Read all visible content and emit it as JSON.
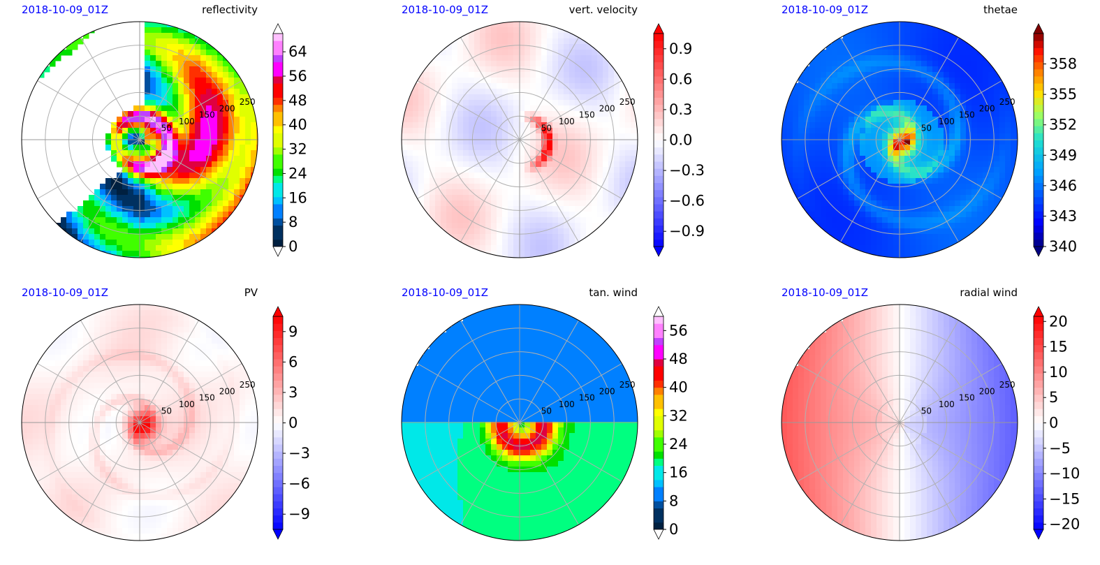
{
  "figure": {
    "panels": [
      {
        "id": "reflectivity",
        "date": "2018-10-09_01Z",
        "title": "reflectivity",
        "colormap": "radar",
        "colorbar": {
          "min": 0,
          "max": 70,
          "ticks": [
            "0",
            "8",
            "16",
            "24",
            "32",
            "40",
            "48",
            "56",
            "64"
          ],
          "tick_values": [
            0,
            8,
            16,
            24,
            32,
            40,
            48,
            56,
            64
          ],
          "extend_low": "white",
          "extend_high": "white"
        },
        "rings": [
          "50",
          "100",
          "150",
          "200",
          "250"
        ]
      },
      {
        "id": "vert-velocity",
        "date": "2018-10-09_01Z",
        "title": "vert. velocity",
        "colormap": "bwr",
        "colorbar": {
          "min": -1.05,
          "max": 1.05,
          "ticks": [
            "−0.9",
            "−0.6",
            "−0.3",
            "0.0",
            "0.3",
            "0.6",
            "0.9"
          ],
          "tick_values": [
            -0.9,
            -0.6,
            -0.3,
            0.0,
            0.3,
            0.6,
            0.9
          ],
          "extend_low": "#0000ff",
          "extend_high": "#ff0000"
        },
        "rings": [
          "50",
          "100",
          "150",
          "200",
          "250"
        ]
      },
      {
        "id": "thetae",
        "date": "2018-10-09_01Z",
        "title": "thetae",
        "colormap": "jet",
        "colorbar": {
          "min": 340,
          "max": 361,
          "ticks": [
            "340",
            "343",
            "346",
            "349",
            "352",
            "355",
            "358"
          ],
          "tick_values": [
            340,
            343,
            346,
            349,
            352,
            355,
            358
          ],
          "extend_low": "#000080",
          "extend_high": "#800000"
        },
        "rings": [
          "50",
          "100",
          "150",
          "200",
          "250"
        ]
      },
      {
        "id": "pv",
        "date": "2018-10-09_01Z",
        "title": "PV",
        "colormap": "bwr",
        "colorbar": {
          "min": -10.5,
          "max": 10.5,
          "ticks": [
            "−9",
            "−6",
            "−3",
            "0",
            "3",
            "6",
            "9"
          ],
          "tick_values": [
            -9,
            -6,
            -3,
            0,
            3,
            6,
            9
          ],
          "extend_low": "#0000ff",
          "extend_high": "#ff0000"
        },
        "rings": [
          "50",
          "100",
          "150",
          "200",
          "250"
        ]
      },
      {
        "id": "tan-wind",
        "date": "2018-10-09_01Z",
        "title": "tan. wind",
        "colormap": "radar",
        "colorbar": {
          "min": 0,
          "max": 60,
          "ticks": [
            "0",
            "8",
            "16",
            "24",
            "32",
            "40",
            "48",
            "56"
          ],
          "tick_values": [
            0,
            8,
            16,
            24,
            32,
            40,
            48,
            56
          ],
          "extend_low": "white",
          "extend_high": "white"
        },
        "rings": [
          "50",
          "100",
          "150",
          "200",
          "250"
        ]
      },
      {
        "id": "radial-wind",
        "date": "2018-10-09_01Z",
        "title": "radial wind",
        "colormap": "bwr",
        "colorbar": {
          "min": -21,
          "max": 21,
          "ticks": [
            "−20",
            "−15",
            "−10",
            "−5",
            "0",
            "5",
            "10",
            "15",
            "20"
          ],
          "tick_values": [
            -20,
            -15,
            -10,
            -5,
            0,
            5,
            10,
            15,
            20
          ],
          "extend_low": "#0000ff",
          "extend_high": "#ff0000"
        },
        "rings": [
          "50",
          "100",
          "150",
          "200",
          "250"
        ]
      }
    ],
    "colors": {
      "date_text": "#0000ff",
      "grid": "#b0b0b0",
      "text": "#000000"
    }
  }
}
